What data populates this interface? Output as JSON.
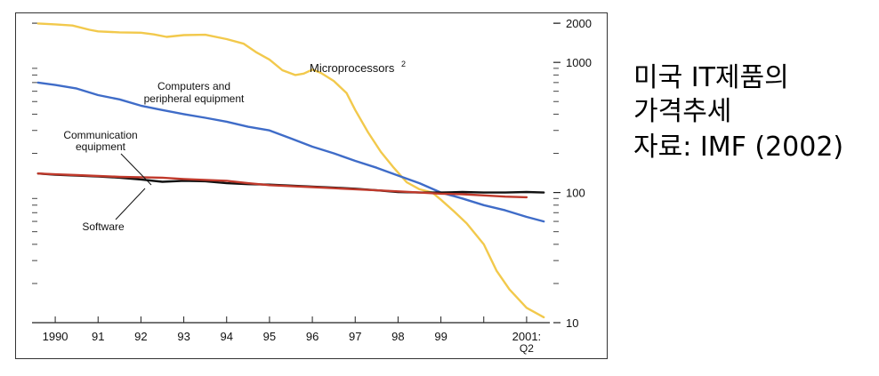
{
  "chart_data": {
    "type": "line",
    "scale": "log",
    "ylim": [
      10,
      2000
    ],
    "y_ticks": [
      {
        "value": 10,
        "label": "10"
      },
      {
        "value": 100,
        "label": "100"
      },
      {
        "value": 1000,
        "label": "1000"
      },
      {
        "value": 2000,
        "label": "2000"
      }
    ],
    "x_ticks": [
      {
        "value": 1990,
        "label": "1990"
      },
      {
        "value": 1991,
        "label": "91"
      },
      {
        "value": 1992,
        "label": "92"
      },
      {
        "value": 1993,
        "label": "93"
      },
      {
        "value": 1994,
        "label": "94"
      },
      {
        "value": 1995,
        "label": "95"
      },
      {
        "value": 1996,
        "label": "96"
      },
      {
        "value": 1997,
        "label": "97"
      },
      {
        "value": 1998,
        "label": "98"
      },
      {
        "value": 1999,
        "label": "99"
      },
      {
        "value": 2000,
        "label": ""
      },
      {
        "value": 2001,
        "label": "2001:"
      }
    ],
    "x_sublabel": "Q2",
    "xlim": [
      1989.5,
      2001.5
    ],
    "series": [
      {
        "name": "Microprocessors",
        "superscript": "2",
        "color": "#f2c94c",
        "x": [
          1989.6,
          1990.0,
          1990.4,
          1990.8,
          1991.0,
          1991.5,
          1992.0,
          1992.3,
          1992.6,
          1993.0,
          1993.5,
          1994.0,
          1994.4,
          1994.7,
          1995.0,
          1995.3,
          1995.6,
          1995.8,
          1996.0,
          1996.2,
          1996.5,
          1996.8,
          1997.0,
          1997.3,
          1997.6,
          1997.9,
          1998.2,
          1998.5,
          1998.8,
          1999.0,
          1999.3,
          1999.6,
          2000.0,
          2000.3,
          2000.6,
          2001.0,
          2001.4
        ],
        "y": [
          1990,
          1960,
          1920,
          1780,
          1730,
          1700,
          1690,
          1640,
          1570,
          1620,
          1630,
          1510,
          1390,
          1190,
          1050,
          870,
          800,
          820,
          880,
          830,
          720,
          580,
          430,
          290,
          205,
          155,
          120,
          106,
          100,
          88,
          72,
          58,
          40,
          25,
          18,
          13,
          11
        ]
      },
      {
        "name": "Computers and peripheral equipment",
        "color": "#3f6cc8",
        "x": [
          1989.6,
          1990.0,
          1990.5,
          1991.0,
          1991.5,
          1992.0,
          1992.5,
          1993.0,
          1993.5,
          1994.0,
          1994.5,
          1995.0,
          1995.5,
          1996.0,
          1996.5,
          1997.0,
          1997.5,
          1998.0,
          1998.5,
          1999.0,
          1999.5,
          2000.0,
          2000.5,
          2001.0,
          2001.4
        ],
        "y": [
          700,
          670,
          630,
          560,
          520,
          465,
          430,
          400,
          375,
          350,
          320,
          300,
          260,
          225,
          200,
          175,
          155,
          135,
          118,
          100,
          90,
          80,
          73,
          65,
          60
        ]
      },
      {
        "name": "Communication equipment",
        "color": "#111111",
        "x": [
          1989.6,
          1990.0,
          1990.5,
          1991.0,
          1991.5,
          1992.0,
          1992.5,
          1993.0,
          1993.5,
          1994.0,
          1994.5,
          1995.0,
          1995.5,
          1996.0,
          1996.5,
          1997.0,
          1997.5,
          1998.0,
          1998.5,
          1999.0,
          1999.5,
          2000.0,
          2000.5,
          2001.0,
          2001.4
        ],
        "y": [
          140,
          137,
          135,
          133,
          130,
          126,
          121,
          123,
          122,
          118,
          116,
          115,
          113,
          111,
          109,
          107,
          104,
          101,
          100,
          100,
          101,
          100,
          100,
          101,
          100
        ]
      },
      {
        "name": "Software",
        "color": "#c0392b",
        "x": [
          1989.6,
          1990.0,
          1990.5,
          1991.0,
          1991.5,
          1992.0,
          1992.5,
          1993.0,
          1993.5,
          1994.0,
          1994.5,
          1995.0,
          1995.5,
          1996.0,
          1996.5,
          1997.0,
          1997.5,
          1998.0,
          1998.5,
          1999.0,
          1999.5,
          2000.0,
          2000.5,
          2001.0
        ],
        "y": [
          140,
          138,
          136,
          134,
          132,
          131,
          130,
          127,
          125,
          123,
          118,
          114,
          112,
          110,
          108,
          106,
          104,
          102,
          100,
          98,
          97,
          95,
          93,
          92
        ]
      }
    ],
    "annotations": {
      "microprocessors": "Microprocessors",
      "micro_sup": "2",
      "computers_1": "Computers and",
      "computers_2": "peripheral equipment",
      "communication_1": "Communication",
      "communication_2": "equipment",
      "software": "Software"
    }
  },
  "caption": {
    "line1": "미국 IT제품의",
    "line2": "가격추세",
    "line3": "자료: IMF (2002)"
  }
}
